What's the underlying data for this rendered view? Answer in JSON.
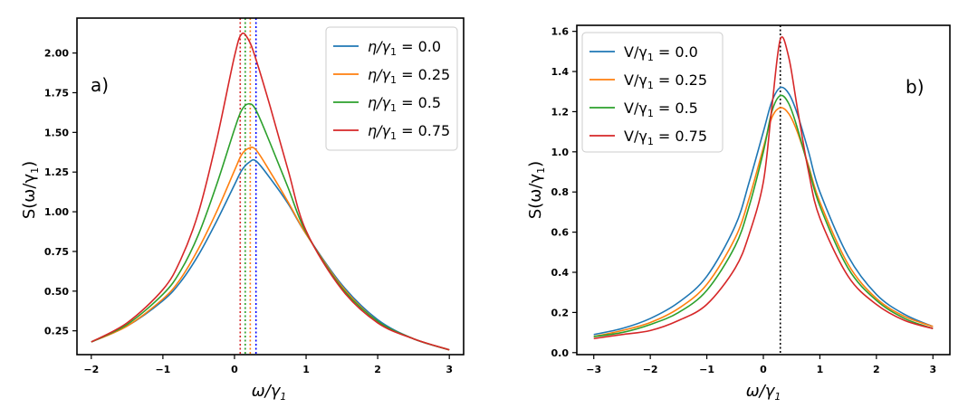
{
  "figure": {
    "panels": 2
  },
  "chart_data": [
    {
      "type": "line",
      "panel_label": "a)",
      "xlabel": "ω/γ",
      "xlabel_sub": "1",
      "ylabel": "S(ω/γ",
      "ylabel_sub": "1",
      "ylabel_end": ")",
      "xlim": [
        -2.2,
        3.2
      ],
      "ylim": [
        0.1,
        2.22
      ],
      "xticks": [
        -2,
        -1,
        0,
        1,
        2,
        3
      ],
      "xtick_labels": [
        "−2",
        "−1",
        "0",
        "1",
        "2",
        "3"
      ],
      "yticks": [
        0.25,
        0.5,
        0.75,
        1.0,
        1.25,
        1.5,
        1.75,
        2.0
      ],
      "ytick_labels": [
        "0.25",
        "0.50",
        "0.75",
        "1.00",
        "1.25",
        "1.50",
        "1.75",
        "2.00"
      ],
      "grid": false,
      "legend_position": "top-right",
      "x": [
        -2,
        -1.5,
        -1,
        -0.75,
        -0.5,
        -0.25,
        0,
        0.1,
        0.2,
        0.3,
        0.5,
        0.75,
        1,
        1.5,
        2,
        2.5,
        3
      ],
      "series": [
        {
          "name_prefix": "η/γ",
          "name_sub": "1",
          "name_value": " = 0.0",
          "color": "#1f77b4",
          "peak_x": 0.3,
          "values": [
            0.18,
            0.28,
            0.44,
            0.56,
            0.73,
            0.94,
            1.17,
            1.26,
            1.31,
            1.32,
            1.21,
            1.05,
            0.86,
            0.54,
            0.32,
            0.2,
            0.13
          ]
        },
        {
          "name_prefix": "η/γ",
          "name_sub": "1",
          "name_value": " = 0.25",
          "color": "#ff7f0e",
          "peak_x": 0.22,
          "values": [
            0.18,
            0.28,
            0.45,
            0.58,
            0.77,
            1.0,
            1.26,
            1.36,
            1.4,
            1.39,
            1.25,
            1.06,
            0.86,
            0.53,
            0.31,
            0.2,
            0.13
          ]
        },
        {
          "name_prefix": "η/γ",
          "name_sub": "1",
          "name_value": " = 0.5",
          "color": "#2ca02c",
          "peak_x": 0.15,
          "values": [
            0.18,
            0.29,
            0.48,
            0.63,
            0.86,
            1.17,
            1.52,
            1.64,
            1.68,
            1.64,
            1.43,
            1.15,
            0.87,
            0.52,
            0.31,
            0.2,
            0.13
          ]
        },
        {
          "name_prefix": "η/γ",
          "name_sub": "1",
          "name_value": " = 0.75",
          "color": "#d62728",
          "peak_x": 0.08,
          "values": [
            0.18,
            0.3,
            0.51,
            0.7,
            1.0,
            1.45,
            1.98,
            2.12,
            2.08,
            1.96,
            1.66,
            1.26,
            0.88,
            0.51,
            0.3,
            0.2,
            0.13
          ]
        }
      ],
      "vlines": [
        {
          "x": 0.3,
          "color": "#0000ff"
        },
        {
          "x": 0.22,
          "color": "#ff7f0e"
        },
        {
          "x": 0.15,
          "color": "#2ca02c"
        },
        {
          "x": 0.08,
          "color": "#d62728"
        }
      ]
    },
    {
      "type": "line",
      "panel_label": "b)",
      "xlabel": "ω/γ",
      "xlabel_sub": "1",
      "ylabel": "S(ω/γ",
      "ylabel_sub": "1",
      "ylabel_end": ")",
      "xlim": [
        -3.3,
        3.3
      ],
      "ylim": [
        -0.01,
        1.63
      ],
      "xticks": [
        -3,
        -2,
        -1,
        0,
        1,
        2,
        3
      ],
      "xtick_labels": [
        "−3",
        "−2",
        "−1",
        "0",
        "1",
        "2",
        "3"
      ],
      "yticks": [
        0.0,
        0.2,
        0.4,
        0.6,
        0.8,
        1.0,
        1.2,
        1.4,
        1.6
      ],
      "ytick_labels": [
        "0.0",
        "0.2",
        "0.4",
        "0.6",
        "0.8",
        "1.0",
        "1.2",
        "1.4",
        "1.6"
      ],
      "grid": false,
      "legend_position": "top-left",
      "x": [
        -3,
        -2.5,
        -2,
        -1.5,
        -1,
        -0.5,
        -0.25,
        0,
        0.15,
        0.3,
        0.45,
        0.6,
        0.8,
        1,
        1.5,
        2,
        2.5,
        3
      ],
      "series": [
        {
          "name_prefix": "V/γ",
          "name_sub": "1",
          "name_value": " = 0.0",
          "color": "#1f77b4",
          "peak_x": 0.3,
          "values": [
            0.09,
            0.12,
            0.17,
            0.25,
            0.38,
            0.63,
            0.85,
            1.1,
            1.25,
            1.32,
            1.29,
            1.19,
            1.0,
            0.8,
            0.48,
            0.29,
            0.19,
            0.13
          ]
        },
        {
          "name_prefix": "V/γ",
          "name_sub": "1",
          "name_value": " = 0.25",
          "color": "#ff7f0e",
          "peak_x": 0.3,
          "values": [
            0.08,
            0.11,
            0.15,
            0.22,
            0.34,
            0.57,
            0.77,
            1.02,
            1.17,
            1.22,
            1.19,
            1.1,
            0.93,
            0.75,
            0.44,
            0.27,
            0.18,
            0.13
          ]
        },
        {
          "name_prefix": "V/γ",
          "name_sub": "1",
          "name_value": " = 0.5",
          "color": "#2ca02c",
          "peak_x": 0.3,
          "values": [
            0.08,
            0.1,
            0.14,
            0.2,
            0.31,
            0.53,
            0.73,
            1.0,
            1.2,
            1.28,
            1.24,
            1.12,
            0.92,
            0.73,
            0.42,
            0.26,
            0.17,
            0.12
          ]
        },
        {
          "name_prefix": "V/γ",
          "name_sub": "1",
          "name_value": " = 0.75",
          "color": "#d62728",
          "peak_x": 0.3,
          "values": [
            0.07,
            0.09,
            0.11,
            0.16,
            0.24,
            0.42,
            0.59,
            0.85,
            1.22,
            1.56,
            1.47,
            1.22,
            0.9,
            0.67,
            0.38,
            0.24,
            0.16,
            0.12
          ]
        }
      ],
      "vlines": [
        {
          "x": 0.3,
          "color": "#000000"
        }
      ]
    }
  ]
}
